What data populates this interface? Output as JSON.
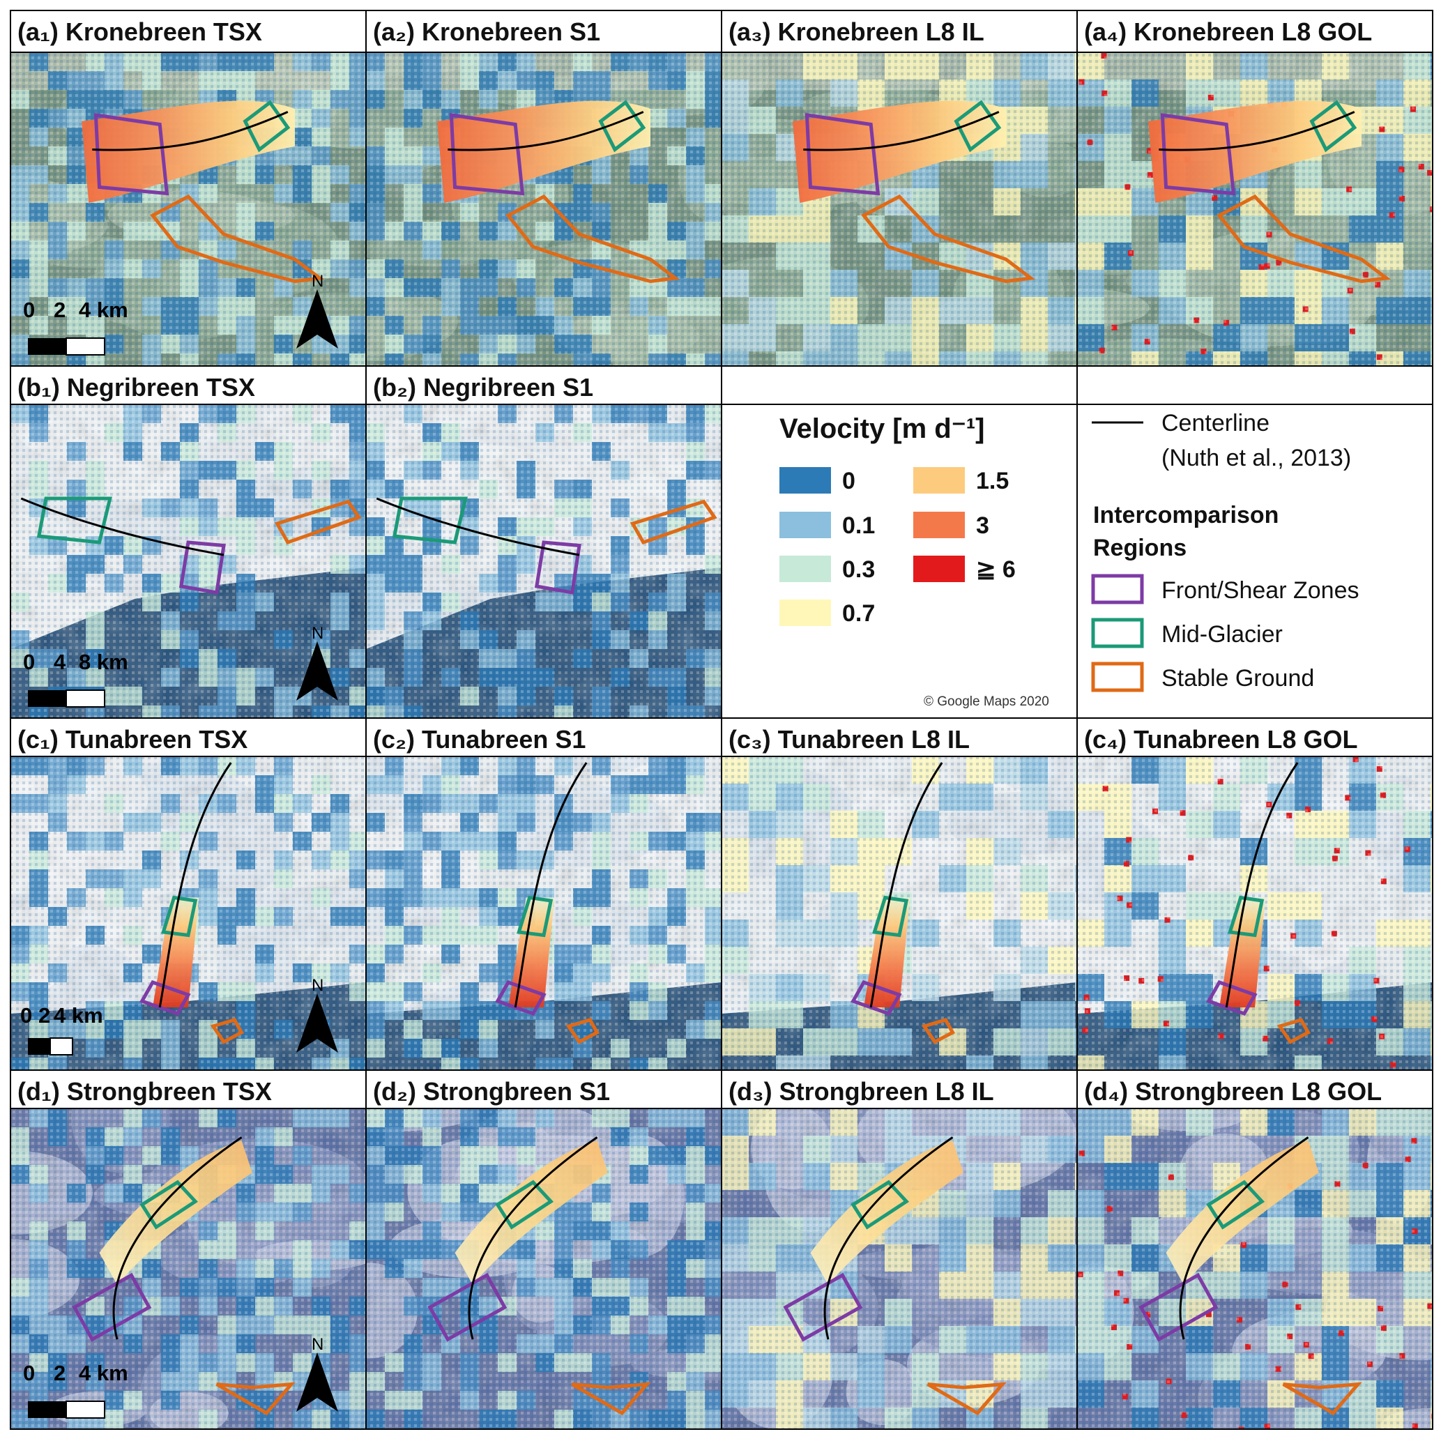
{
  "panels": {
    "a1": {
      "label": "(a₁) Kronebreen TSX",
      "scale": [
        "0",
        "2",
        "4 km"
      ]
    },
    "a2": {
      "label": "(a₂) Kronebreen S1"
    },
    "a3": {
      "label": "(a₃) Kronebreen L8 IL"
    },
    "a4": {
      "label": "(a₄) Kronebreen L8 GOL"
    },
    "b1": {
      "label": "(b₁) Negribreen TSX",
      "scale": [
        "0",
        "4",
        "8 km"
      ]
    },
    "b2": {
      "label": "(b₂) Negribreen S1"
    },
    "c1": {
      "label": "(c₁) Tunabreen TSX",
      "scale": [
        "0",
        "2",
        "4 km"
      ]
    },
    "c2": {
      "label": "(c₂) Tunabreen S1"
    },
    "c3": {
      "label": "(c₃) Tunabreen L8 IL"
    },
    "c4": {
      "label": "(c₄) Tunabreen L8 GOL"
    },
    "d1": {
      "label": "(d₁) Strongbreen TSX",
      "scale": [
        "0",
        "2",
        "4 km"
      ]
    },
    "d2": {
      "label": "(d₂) Strongbreen S1"
    },
    "d3": {
      "label": "(d₃) Strongbreen L8 IL"
    },
    "d4": {
      "label": "(d₄) Strongbreen L8 GOL"
    }
  },
  "north_label": "N",
  "velocity_legend": {
    "title": "Velocity [m d⁻¹]",
    "items": [
      {
        "label": "0",
        "color": "#2c7bb6"
      },
      {
        "label": "0.1",
        "color": "#8bbfdd"
      },
      {
        "label": "0.3",
        "color": "#c7e9d8"
      },
      {
        "label": "0.7",
        "color": "#fff7b8"
      },
      {
        "label": "1.5",
        "color": "#fdcb7e"
      },
      {
        "label": "3",
        "color": "#f4794a"
      },
      {
        "label": "≧ 6",
        "color": "#e31a1c"
      }
    ]
  },
  "region_legend": {
    "centerline": "Centerline",
    "centerline_ref": "(Nuth et al., 2013)",
    "title_line1": "Intercomparison",
    "title_line2": "Regions",
    "items": [
      {
        "label": "Front/Shear Zones",
        "color": "#7d3ba5"
      },
      {
        "label": "Mid-Glacier",
        "color": "#1b9a78"
      },
      {
        "label": "Stable Ground",
        "color": "#e06a16"
      }
    ]
  },
  "copyright": "© Google Maps 2020"
}
